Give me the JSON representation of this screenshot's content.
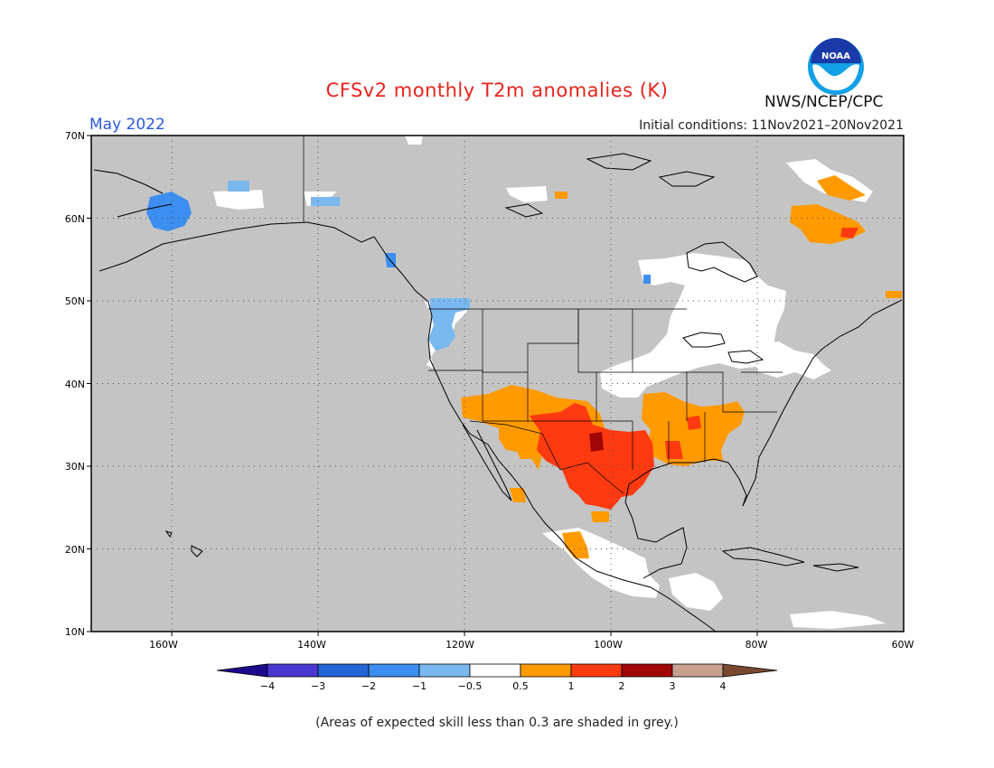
{
  "header": {
    "title": "CFSv2 monthly T2m anomalies (K)",
    "month": "May 2022",
    "initial_conditions": "Initial conditions: 11Nov2021–20Nov2021",
    "agency": "NWS/NCEP/CPC"
  },
  "logo": {
    "lettering": "NOAA"
  },
  "map": {
    "lat_labels": [
      "70N",
      "60N",
      "50N",
      "40N",
      "30N",
      "20N",
      "10N"
    ],
    "lon_labels": [
      "160W",
      "140W",
      "120W",
      "100W",
      "80W",
      "60W"
    ],
    "extent": {
      "lon": [
        -171,
        -60
      ],
      "lat": [
        10,
        70
      ]
    }
  },
  "colorbar": {
    "ticks": [
      "−4",
      "−3",
      "−2",
      "−1",
      "−0.5",
      "0.5",
      "1",
      "2",
      "3",
      "4"
    ],
    "colors": {
      "lt_neg4": "#1c0a8c",
      "neg4_neg3": "#4838d0",
      "neg3_neg2": "#2464d4",
      "neg2_neg1": "#3c8ef0",
      "neg1_neg05": "#7ab8f0",
      "neg05_05": "#ffffff",
      "p05_1": "#ff9a00",
      "p1_2": "#ff3a10",
      "p2_3": "#a00606",
      "p3_4": "#c8a090",
      "gt_4": "#7a4830"
    }
  },
  "legend_note": "(Areas of expected skill less than 0.3 are shaded in grey.)",
  "colors": {
    "skill_grey": "#c4c4c4",
    "title_red": "#e8241c",
    "month_blue": "#2a58e0"
  }
}
